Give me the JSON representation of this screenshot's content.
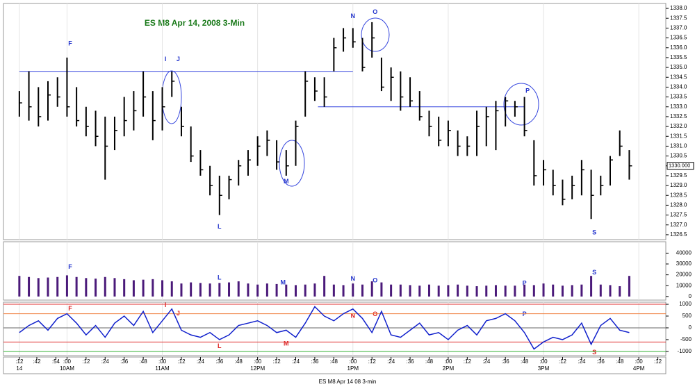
{
  "chart_data": [
    {
      "type": "ohlc",
      "title": "ES M8 Apr 14, 2008 3-Min",
      "footer": "ES M8 Apr 14 08 3-min",
      "color": "#000000",
      "x": [
        30,
        36,
        42,
        48,
        54,
        60,
        66,
        72,
        78,
        84,
        90,
        96,
        102,
        108,
        114,
        120,
        126,
        132,
        138,
        144,
        150,
        156,
        162,
        168,
        174,
        180,
        186,
        192,
        198,
        204,
        210,
        216,
        222,
        228,
        234,
        240,
        246,
        252,
        258,
        264,
        270,
        276,
        282,
        288,
        294,
        300,
        306,
        312,
        318,
        324,
        330,
        336,
        342,
        348,
        354,
        360,
        366,
        372,
        378,
        384,
        390,
        396,
        402,
        408,
        414
      ],
      "high": [
        1333.8,
        1334.8,
        1334.0,
        1334.3,
        1334.5,
        1335.5,
        1334.0,
        1333.0,
        1332.8,
        1332.5,
        1332.5,
        1333.5,
        1333.8,
        1334.8,
        1333.8,
        1334.0,
        1334.8,
        1333.0,
        1332.0,
        1330.8,
        1330.0,
        1329.5,
        1329.5,
        1330.3,
        1330.8,
        1331.5,
        1331.8,
        1331.3,
        1330.8,
        1332.3,
        1334.8,
        1334.5,
        1334.5,
        1336.5,
        1337.0,
        1337.0,
        1336.5,
        1337.3,
        1335.5,
        1335.0,
        1334.8,
        1334.5,
        1333.8,
        1332.8,
        1332.5,
        1332.3,
        1331.8,
        1331.5,
        1332.8,
        1333.0,
        1333.3,
        1333.5,
        1333.3,
        1333.5,
        1331.3,
        1330.3,
        1329.8,
        1329.3,
        1329.5,
        1330.3,
        1329.8,
        1329.5,
        1330.5,
        1331.8,
        1330.8
      ],
      "low": [
        1332.5,
        1332.3,
        1332.0,
        1332.3,
        1333.0,
        1332.5,
        1332.0,
        1331.5,
        1331.0,
        1329.3,
        1330.8,
        1331.5,
        1331.8,
        1332.5,
        1331.3,
        1331.8,
        1333.5,
        1331.5,
        1330.2,
        1329.5,
        1328.5,
        1327.5,
        1328.3,
        1329.0,
        1329.5,
        1330.0,
        1330.5,
        1329.8,
        1329.5,
        1330.0,
        1332.5,
        1333.3,
        1333.0,
        1334.8,
        1335.8,
        1336.0,
        1334.8,
        1335.5,
        1333.8,
        1333.3,
        1332.8,
        1333.0,
        1332.3,
        1331.5,
        1331.0,
        1331.0,
        1330.5,
        1330.5,
        1330.5,
        1331.0,
        1330.8,
        1332.0,
        1332.5,
        1331.5,
        1329.0,
        1329.0,
        1328.5,
        1328.0,
        1328.3,
        1328.5,
        1327.3,
        1328.5,
        1329.0,
        1330.5,
        1329.3
      ],
      "close": [
        1333.2,
        1333.0,
        1332.5,
        1333.6,
        1333.5,
        1333.0,
        1332.3,
        1332.0,
        1331.5,
        1331.0,
        1331.8,
        1332.3,
        1332.8,
        1333.5,
        1332.3,
        1333.0,
        1334.3,
        1332.0,
        1330.5,
        1329.8,
        1329.0,
        1328.5,
        1329.3,
        1330.0,
        1330.3,
        1331.0,
        1331.3,
        1330.2,
        1330.0,
        1332.0,
        1334.3,
        1333.8,
        1333.5,
        1336.0,
        1336.5,
        1336.3,
        1335.0,
        1336.5,
        1334.0,
        1334.5,
        1333.5,
        1333.3,
        1332.5,
        1332.0,
        1331.3,
        1331.8,
        1331.0,
        1331.0,
        1332.0,
        1332.5,
        1332.8,
        1333.3,
        1333.0,
        1331.8,
        1329.5,
        1329.8,
        1329.0,
        1328.3,
        1329.0,
        1329.8,
        1328.5,
        1329.0,
        1330.3,
        1331.0,
        1330.0
      ],
      "last_label": "1330.000",
      "xlim": [
        20,
        437
      ],
      "ylim": [
        1326.25,
        1338.25
      ],
      "yticks": [
        {
          "value": 1326.5,
          "label": "1326.5"
        },
        {
          "value": 1327,
          "label": "1327.0"
        },
        {
          "value": 1327.5,
          "label": "1327.5"
        },
        {
          "value": 1328,
          "label": "1328.0"
        },
        {
          "value": 1328.5,
          "label": "1328.5"
        },
        {
          "value": 1329,
          "label": "1329.0"
        },
        {
          "value": 1329.5,
          "label": "1329.5"
        },
        {
          "value": 1330,
          "label": "1330.0"
        },
        {
          "value": 1330.5,
          "label": "1330.5"
        },
        {
          "value": 1331,
          "label": "1331.0"
        },
        {
          "value": 1331.5,
          "label": "1331.5"
        },
        {
          "value": 1332,
          "label": "1332.0"
        },
        {
          "value": 1332.5,
          "label": "1332.5"
        },
        {
          "value": 1333,
          "label": "1333.0"
        },
        {
          "value": 1333.5,
          "label": "1333.5"
        },
        {
          "value": 1334,
          "label": "1334.0"
        },
        {
          "value": 1334.5,
          "label": "1334.5"
        },
        {
          "value": 1335,
          "label": "1335.0"
        },
        {
          "value": 1335.5,
          "label": "1335.5"
        },
        {
          "value": 1336,
          "label": "1336.0"
        },
        {
          "value": 1336.5,
          "label": "1336.5"
        },
        {
          "value": 1337,
          "label": "1337.0"
        },
        {
          "value": 1337.5,
          "label": "1337.5"
        },
        {
          "value": 1338,
          "label": "1338.0"
        }
      ],
      "xticks": [
        {
          "value": 30,
          "label": ":12"
        },
        {
          "value": 41,
          "label": ":42"
        },
        {
          "value": 53,
          "label": ":54"
        },
        {
          "value": 60,
          "label": ":00"
        },
        {
          "value": 72,
          "label": ":12"
        },
        {
          "value": 84,
          "label": ":24"
        },
        {
          "value": 96,
          "label": ":36"
        },
        {
          "value": 108,
          "label": ":48"
        },
        {
          "value": 120,
          "label": ":00"
        },
        {
          "value": 132,
          "label": ":12"
        },
        {
          "value": 144,
          "label": ":24"
        },
        {
          "value": 156,
          "label": ":36"
        },
        {
          "value": 168,
          "label": ":48"
        },
        {
          "value": 180,
          "label": ":00"
        },
        {
          "value": 192,
          "label": ":12"
        },
        {
          "value": 204,
          "label": ":24"
        },
        {
          "value": 216,
          "label": ":36"
        },
        {
          "value": 228,
          "label": ":48"
        },
        {
          "value": 240,
          "label": ":00"
        },
        {
          "value": 252,
          "label": ":12"
        },
        {
          "value": 264,
          "label": ":24"
        },
        {
          "value": 276,
          "label": ":36"
        },
        {
          "value": 288,
          "label": ":48"
        },
        {
          "value": 300,
          "label": ":00"
        },
        {
          "value": 312,
          "label": ":12"
        },
        {
          "value": 324,
          "label": ":24"
        },
        {
          "value": 336,
          "label": ":36"
        },
        {
          "value": 348,
          "label": ":48"
        },
        {
          "value": 360,
          "label": ":00"
        },
        {
          "value": 372,
          "label": ":12"
        },
        {
          "value": 384,
          "label": ":24"
        },
        {
          "value": 396,
          "label": ":36"
        },
        {
          "value": 408,
          "label": ":48"
        },
        {
          "value": 420,
          "label": ":00"
        },
        {
          "value": 432,
          "label": ":12"
        }
      ],
      "xticks_major": [
        {
          "value": 30,
          "label": "14"
        },
        {
          "value": 60,
          "label": "10AM"
        },
        {
          "value": 120,
          "label": "11AM"
        },
        {
          "value": 180,
          "label": "12PM"
        },
        {
          "value": 240,
          "label": "1PM"
        },
        {
          "value": 300,
          "label": "2PM"
        },
        {
          "value": 360,
          "label": "3PM"
        },
        {
          "value": 420,
          "label": "4PM"
        }
      ],
      "levels": [
        {
          "value": 1334.8,
          "x": [
            30,
            240
          ],
          "color": "#3344dd"
        },
        {
          "value": 1333.0,
          "x": [
            218,
            348
          ],
          "color": "#3344dd"
        }
      ],
      "annotations": [
        {
          "text": "F",
          "x": 62,
          "y": 1336.2,
          "color": "#2233cc"
        },
        {
          "text": "I",
          "x": 122,
          "y": 1335.4,
          "color": "#2233cc"
        },
        {
          "text": "J",
          "x": 130,
          "y": 1335.4,
          "color": "#2233cc"
        },
        {
          "text": "L",
          "x": 156,
          "y": 1326.9,
          "color": "#2233cc"
        },
        {
          "text": "M",
          "x": 198,
          "y": 1329.2,
          "color": "#2233cc"
        },
        {
          "text": "N",
          "x": 240,
          "y": 1337.6,
          "color": "#2233cc"
        },
        {
          "text": "O",
          "x": 254,
          "y": 1337.8,
          "color": "#2233cc"
        },
        {
          "text": "P",
          "x": 350,
          "y": 1333.8,
          "color": "#2233cc"
        },
        {
          "text": "S",
          "x": 392,
          "y": 1326.6,
          "color": "#2233cc"
        }
      ]
    },
    {
      "type": "bar",
      "color": "#4b1a7a",
      "values": [
        19000,
        18000,
        17000,
        17500,
        18000,
        19500,
        18000,
        17000,
        16500,
        18000,
        17000,
        16000,
        15000,
        15500,
        16000,
        15000,
        14000,
        12000,
        13000,
        12500,
        12000,
        12500,
        13000,
        14000,
        12000,
        11000,
        12000,
        11500,
        11000,
        10500,
        11000,
        12000,
        19000,
        11000,
        10500,
        12000,
        11000,
        14000,
        13000,
        11000,
        11000,
        10500,
        10000,
        11000,
        10000,
        10500,
        11000,
        10000,
        9500,
        10000,
        10500,
        10000,
        10000,
        11000,
        10500,
        12000,
        11000,
        10000,
        10500,
        11000,
        19000,
        11000,
        10500,
        9500,
        19000
      ],
      "ylim": [
        -3300,
        50500
      ],
      "yticks": [
        0,
        10000,
        20000,
        30000,
        40000
      ],
      "annotations": [
        {
          "text": "F",
          "x": 62,
          "y": 27000,
          "color": "#2233cc"
        },
        {
          "text": "L",
          "x": 156,
          "y": 17000,
          "color": "#2233cc"
        },
        {
          "text": "M",
          "x": 196,
          "y": 12500,
          "color": "#2233cc"
        },
        {
          "text": "N",
          "x": 240,
          "y": 16000,
          "color": "#2233cc"
        },
        {
          "text": "O",
          "x": 254,
          "y": 14500,
          "color": "#2233cc"
        },
        {
          "text": "P",
          "x": 348,
          "y": 12000,
          "color": "#2233cc"
        },
        {
          "text": "S",
          "x": 392,
          "y": 22000,
          "color": "#2233cc"
        }
      ]
    },
    {
      "type": "line",
      "color": "#1020cc",
      "values": [
        -200,
        100,
        300,
        -100,
        400,
        600,
        200,
        -300,
        100,
        -400,
        200,
        500,
        100,
        700,
        -200,
        300,
        800,
        -100,
        -300,
        -400,
        -200,
        -500,
        -300,
        100,
        200,
        300,
        100,
        -200,
        -100,
        -400,
        200,
        900,
        500,
        300,
        600,
        800,
        400,
        -200,
        700,
        -300,
        -400,
        -100,
        200,
        -300,
        -200,
        -500,
        -100,
        100,
        -300,
        300,
        400,
        600,
        300,
        -200,
        -900,
        -600,
        -400,
        -500,
        -300,
        200,
        -700,
        100,
        400,
        -100,
        -200
      ],
      "ylim": [
        -1180,
        1090
      ],
      "yticks": [
        1000,
        500,
        0,
        -500,
        -1000
      ],
      "hlines": [
        {
          "value": 1000,
          "color": "#e03030"
        },
        {
          "value": 600,
          "color": "#f08040"
        },
        {
          "value": 0,
          "color": "#666666"
        },
        {
          "value": -600,
          "color": "#e03030"
        },
        {
          "value": -1000,
          "color": "#30b030"
        }
      ],
      "annotations": [
        {
          "text": "F",
          "x": 62,
          "y": 800,
          "color": "#dd2222"
        },
        {
          "text": "I",
          "x": 122,
          "y": 950,
          "color": "#dd2222"
        },
        {
          "text": "J",
          "x": 130,
          "y": 600,
          "color": "#dd2222"
        },
        {
          "text": "L",
          "x": 156,
          "y": -780,
          "color": "#dd2222"
        },
        {
          "text": "M",
          "x": 198,
          "y": -680,
          "color": "#dd2222"
        },
        {
          "text": "N",
          "x": 240,
          "y": 500,
          "color": "#dd2222"
        },
        {
          "text": "O",
          "x": 254,
          "y": 570,
          "color": "#dd2222"
        },
        {
          "text": "P",
          "x": 348,
          "y": 570,
          "color": "#2233cc"
        },
        {
          "text": "S",
          "x": 392,
          "y": -1050,
          "color": "#dd2222"
        }
      ]
    }
  ]
}
